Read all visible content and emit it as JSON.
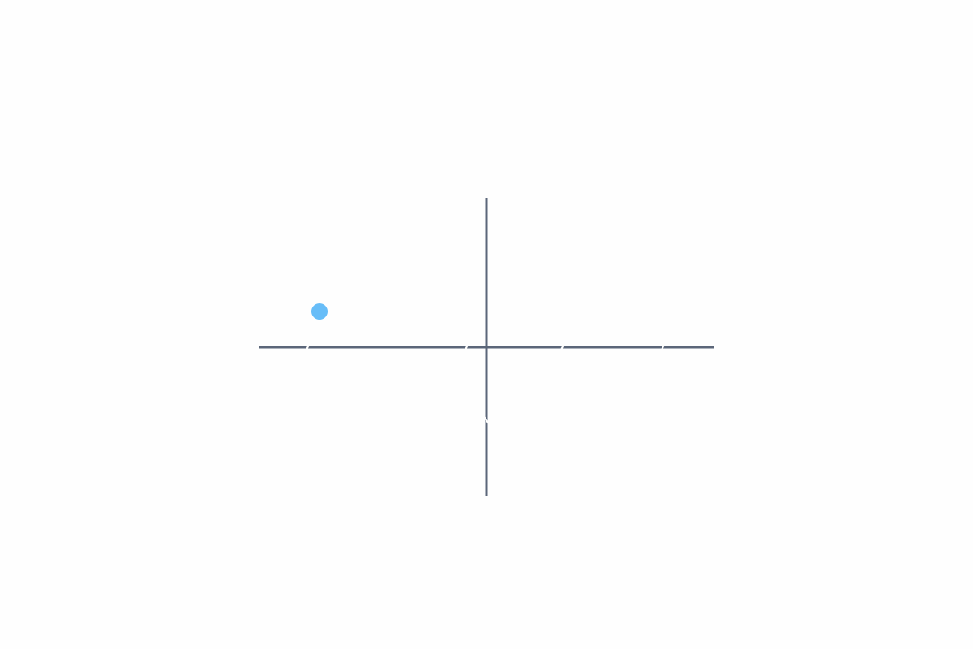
{
  "diagram": {
    "type": "coordinate-axes",
    "axis_color": "#5b6679",
    "point_color": "#67bdf8",
    "point": {
      "quadrant": "upper-left"
    }
  }
}
